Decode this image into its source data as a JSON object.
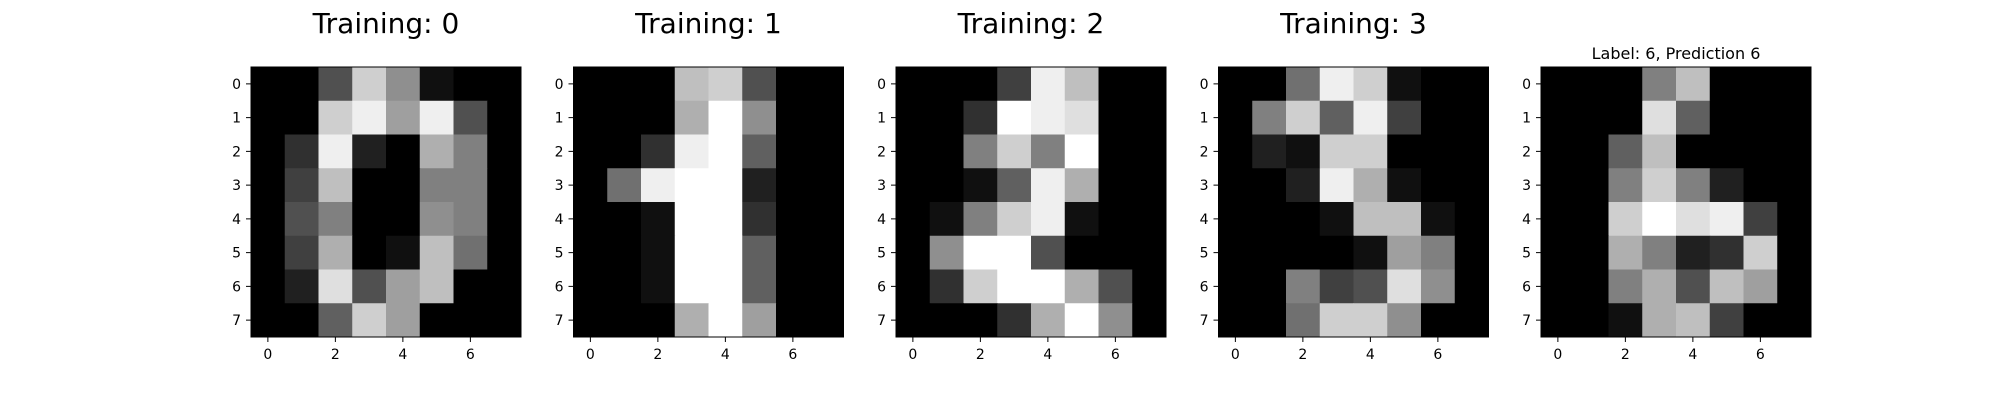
{
  "chart_data": [
    {
      "type": "heatmap",
      "title": "Training: 0",
      "colormap": "gray",
      "value_range": [
        0,
        16
      ],
      "xticks": [
        "0",
        "2",
        "4",
        "6"
      ],
      "yticks": [
        "0",
        "1",
        "2",
        "3",
        "4",
        "5",
        "6",
        "7"
      ],
      "values": [
        [
          0,
          0,
          5,
          13,
          9,
          1,
          0,
          0
        ],
        [
          0,
          0,
          13,
          15,
          10,
          15,
          5,
          0
        ],
        [
          0,
          3,
          15,
          2,
          0,
          11,
          8,
          0
        ],
        [
          0,
          4,
          12,
          0,
          0,
          8,
          8,
          0
        ],
        [
          0,
          5,
          8,
          0,
          0,
          9,
          8,
          0
        ],
        [
          0,
          4,
          11,
          0,
          1,
          12,
          7,
          0
        ],
        [
          0,
          2,
          14,
          5,
          10,
          12,
          0,
          0
        ],
        [
          0,
          0,
          6,
          13,
          10,
          0,
          0,
          0
        ]
      ]
    },
    {
      "type": "heatmap",
      "title": "Training: 1",
      "colormap": "gray",
      "value_range": [
        0,
        16
      ],
      "xticks": [
        "0",
        "2",
        "4",
        "6"
      ],
      "yticks": [
        "0",
        "1",
        "2",
        "3",
        "4",
        "5",
        "6",
        "7"
      ],
      "values": [
        [
          0,
          0,
          0,
          12,
          13,
          5,
          0,
          0
        ],
        [
          0,
          0,
          0,
          11,
          16,
          9,
          0,
          0
        ],
        [
          0,
          0,
          3,
          15,
          16,
          6,
          0,
          0
        ],
        [
          0,
          7,
          15,
          16,
          16,
          2,
          0,
          0
        ],
        [
          0,
          0,
          1,
          16,
          16,
          3,
          0,
          0
        ],
        [
          0,
          0,
          1,
          16,
          16,
          6,
          0,
          0
        ],
        [
          0,
          0,
          1,
          16,
          16,
          6,
          0,
          0
        ],
        [
          0,
          0,
          0,
          11,
          16,
          10,
          0,
          0
        ]
      ]
    },
    {
      "type": "heatmap",
      "title": "Training: 2",
      "colormap": "gray",
      "value_range": [
        0,
        16
      ],
      "xticks": [
        "0",
        "2",
        "4",
        "6"
      ],
      "yticks": [
        "0",
        "1",
        "2",
        "3",
        "4",
        "5",
        "6",
        "7"
      ],
      "values": [
        [
          0,
          0,
          0,
          4,
          15,
          12,
          0,
          0
        ],
        [
          0,
          0,
          3,
          16,
          15,
          14,
          0,
          0
        ],
        [
          0,
          0,
          8,
          13,
          8,
          16,
          0,
          0
        ],
        [
          0,
          0,
          1,
          6,
          15,
          11,
          0,
          0
        ],
        [
          0,
          1,
          8,
          13,
          15,
          1,
          0,
          0
        ],
        [
          0,
          9,
          16,
          16,
          5,
          0,
          0,
          0
        ],
        [
          0,
          3,
          13,
          16,
          16,
          11,
          5,
          0
        ],
        [
          0,
          0,
          0,
          3,
          11,
          16,
          9,
          0
        ]
      ]
    },
    {
      "type": "heatmap",
      "title": "Training: 3",
      "colormap": "gray",
      "value_range": [
        0,
        16
      ],
      "xticks": [
        "0",
        "2",
        "4",
        "6"
      ],
      "yticks": [
        "0",
        "1",
        "2",
        "3",
        "4",
        "5",
        "6",
        "7"
      ],
      "values": [
        [
          0,
          0,
          7,
          15,
          13,
          1,
          0,
          0
        ],
        [
          0,
          8,
          13,
          6,
          15,
          4,
          0,
          0
        ],
        [
          0,
          2,
          1,
          13,
          13,
          0,
          0,
          0
        ],
        [
          0,
          0,
          2,
          15,
          11,
          1,
          0,
          0
        ],
        [
          0,
          0,
          0,
          1,
          12,
          12,
          1,
          0
        ],
        [
          0,
          0,
          0,
          0,
          1,
          10,
          8,
          0
        ],
        [
          0,
          0,
          8,
          4,
          5,
          14,
          9,
          0
        ],
        [
          0,
          0,
          7,
          13,
          13,
          9,
          0,
          0
        ]
      ]
    },
    {
      "type": "heatmap",
      "title": "Label: 6, Prediction 6",
      "colormap": "gray",
      "value_range": [
        0,
        16
      ],
      "xticks": [
        "0",
        "2",
        "4",
        "6"
      ],
      "yticks": [
        "0",
        "1",
        "2",
        "3",
        "4",
        "5",
        "6",
        "7"
      ],
      "values": [
        [
          0,
          0,
          0,
          8,
          12,
          0,
          0,
          0
        ],
        [
          0,
          0,
          0,
          14,
          6,
          0,
          0,
          0
        ],
        [
          0,
          0,
          6,
          12,
          0,
          0,
          0,
          0
        ],
        [
          0,
          0,
          8,
          13,
          8,
          2,
          0,
          0
        ],
        [
          0,
          0,
          13,
          16,
          14,
          15,
          4,
          0
        ],
        [
          0,
          0,
          11,
          8,
          2,
          3,
          13,
          0
        ],
        [
          0,
          0,
          8,
          11,
          5,
          12,
          10,
          0
        ],
        [
          0,
          0,
          1,
          11,
          12,
          4,
          0,
          0
        ]
      ]
    }
  ]
}
